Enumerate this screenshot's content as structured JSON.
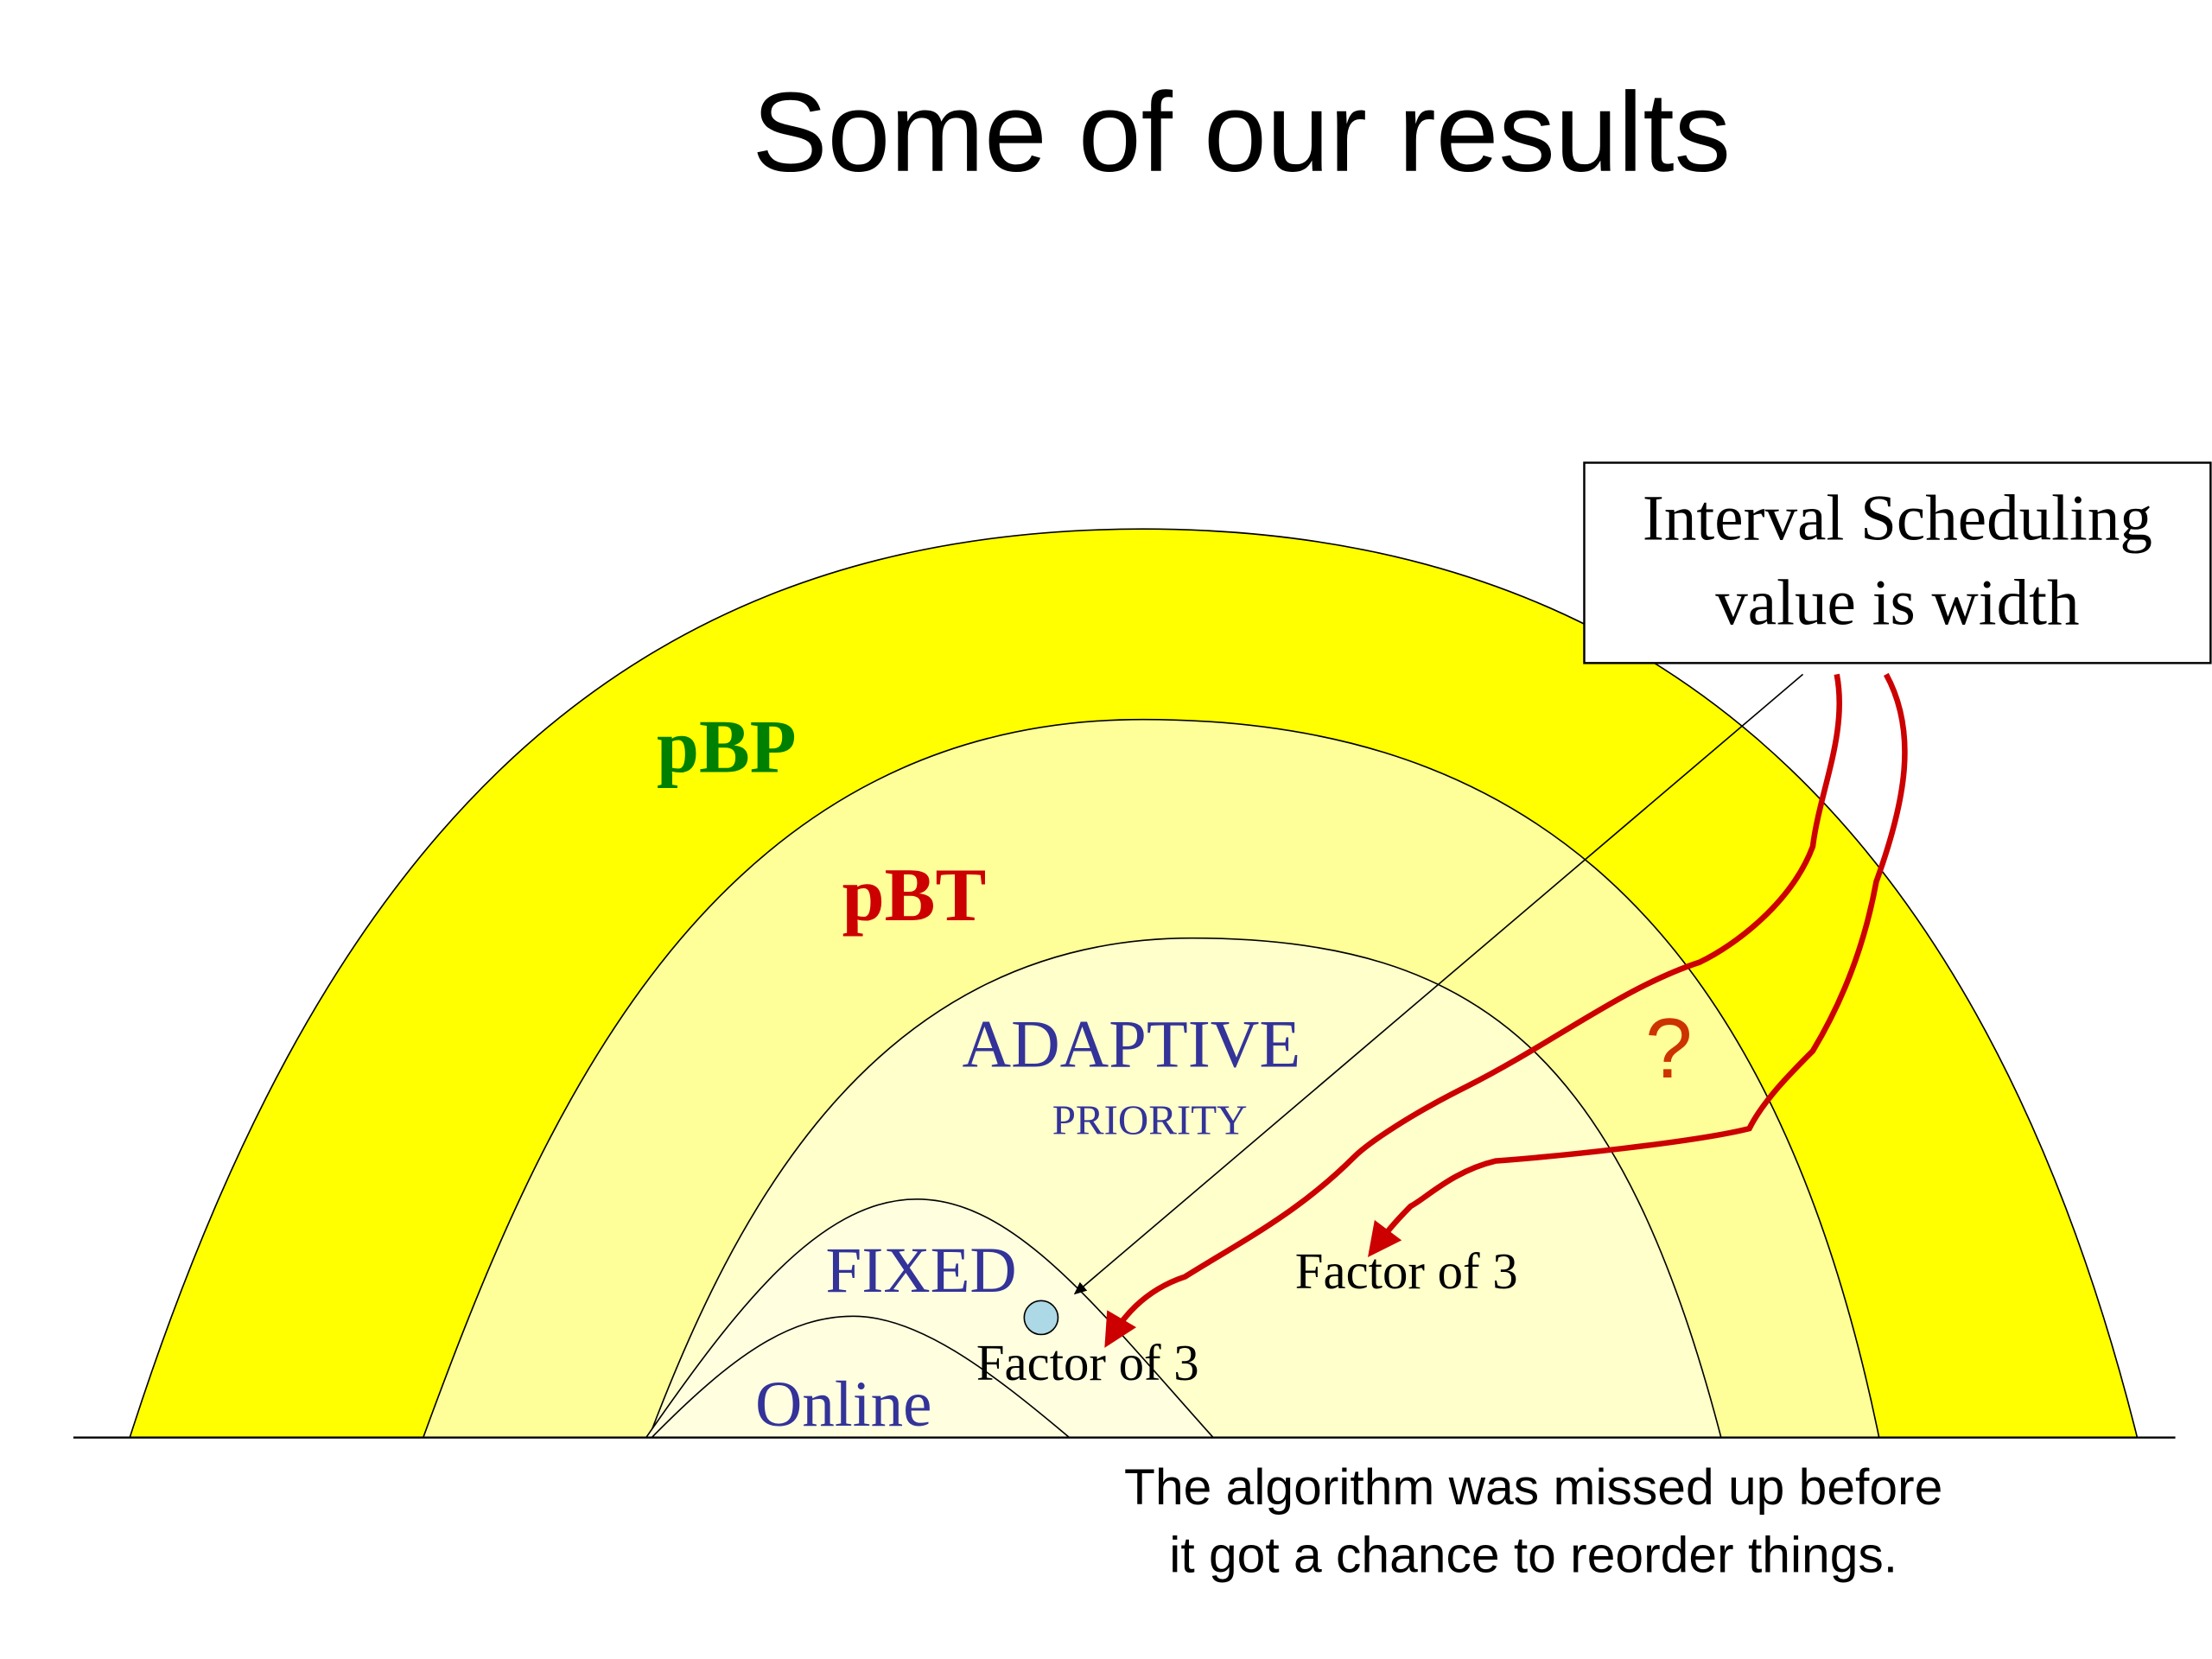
{
  "title": "Some of our results",
  "regions": {
    "pbp": "pBP",
    "pbt": "pBT",
    "adaptive": "ADAPTIVE",
    "priority": "PRIORITY",
    "fixed": "FIXED",
    "online": "Online"
  },
  "question": "?",
  "annotations": [
    "Factor of 3",
    "Factor of 3"
  ],
  "callout": {
    "lines": [
      "Interval Scheduling",
      "value is width"
    ]
  },
  "caption": {
    "lines": [
      "The algorithm was missed up before",
      "it got a chance to reorder things."
    ]
  }
}
